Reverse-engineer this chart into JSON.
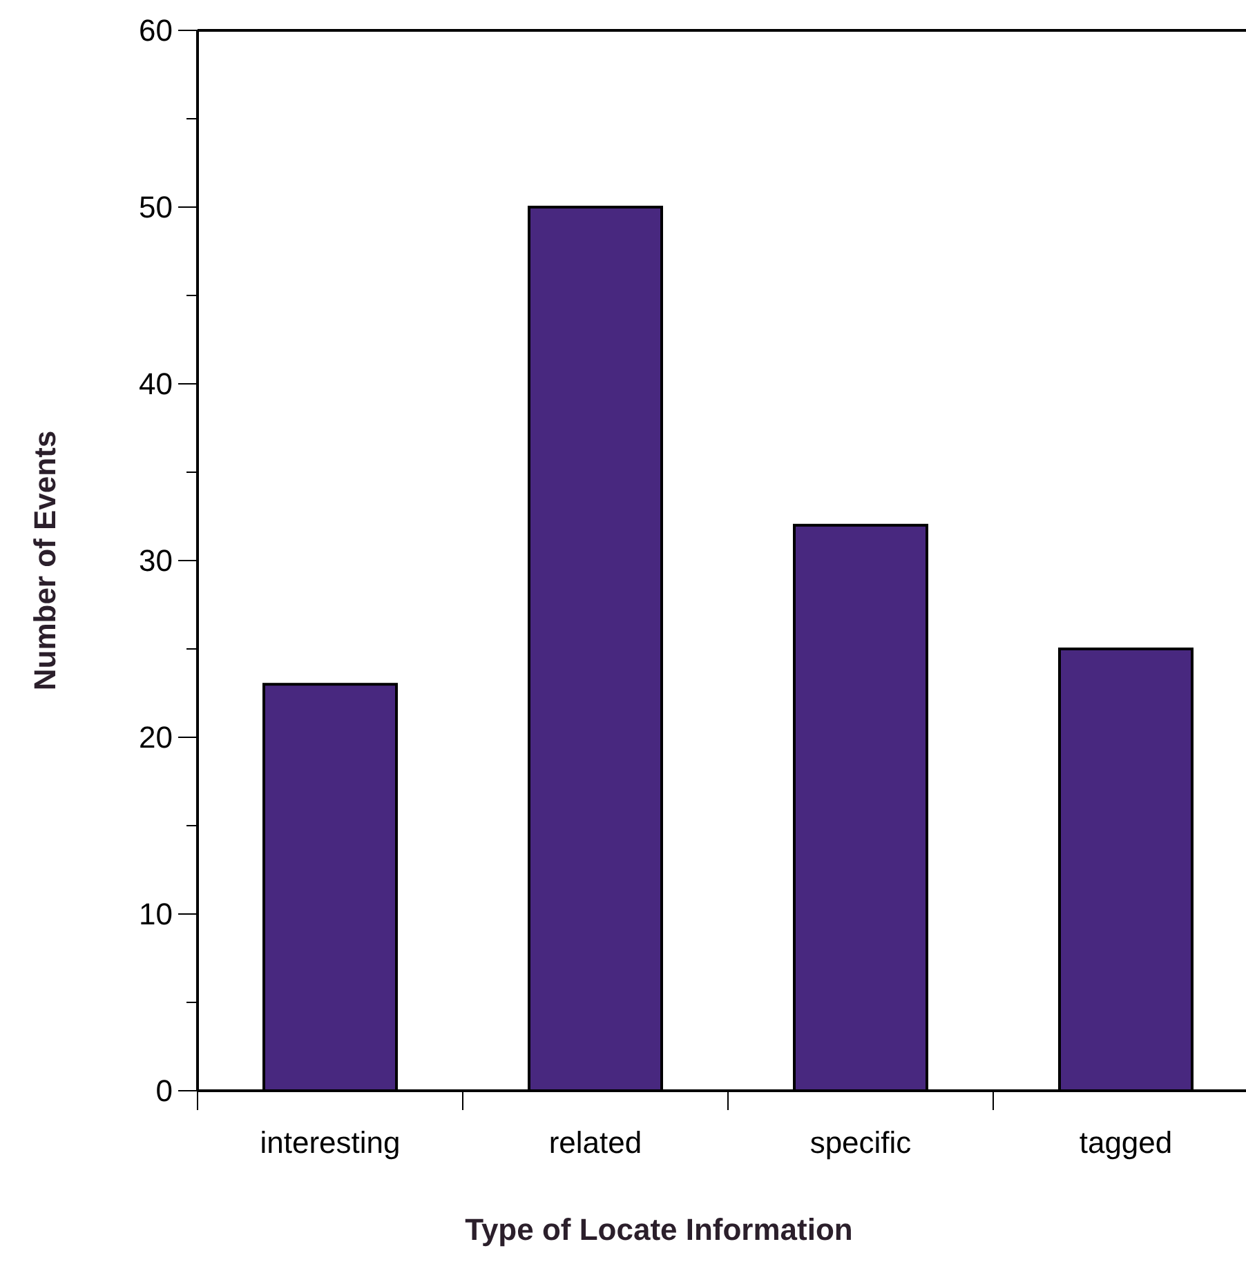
{
  "chart_data": {
    "type": "bar",
    "xlabel": "Type of Locate Information",
    "ylabel": "Number of Events",
    "categories": [
      "interesting",
      "related",
      "specific",
      "tagged"
    ],
    "values": [
      23,
      50,
      32,
      25
    ],
    "color": "#48287f",
    "ylim": [
      0,
      60
    ],
    "yticks": [
      0,
      {
        "value": 5,
        "label": null
      },
      10,
      {
        "value": 15,
        "label": null
      },
      20,
      {
        "value": 25,
        "label": null
      },
      30,
      {
        "value": 35,
        "label": null
      },
      40,
      {
        "value": 45,
        "label": null
      },
      50,
      {
        "value": 55,
        "label": null
      },
      60
    ],
    "grid": false
  }
}
